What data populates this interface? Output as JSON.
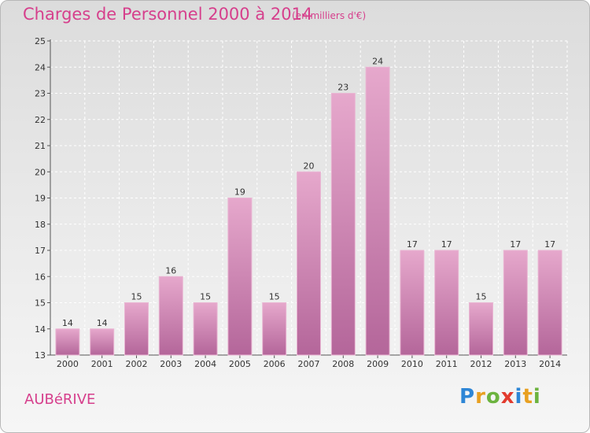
{
  "header": {
    "title": "Charges de Personnel 2000 à 2014",
    "subtitle": "(en milliers d'€)"
  },
  "footer": {
    "commune": "AUBéRIVE",
    "logo_letters": [
      "P",
      "r",
      "o",
      "x",
      "i",
      "t",
      "i"
    ]
  },
  "chart_data": {
    "type": "bar",
    "categories": [
      "2000",
      "2001",
      "2002",
      "2003",
      "2004",
      "2005",
      "2006",
      "2007",
      "2008",
      "2009",
      "2010",
      "2011",
      "2012",
      "2013",
      "2014"
    ],
    "values": [
      14,
      14,
      15,
      16,
      15,
      19,
      15,
      20,
      23,
      24,
      17,
      17,
      15,
      17,
      17
    ],
    "title": "Charges de Personnel 2000 à 2014",
    "ylim": [
      13,
      25
    ],
    "yticks": [
      13,
      14,
      15,
      16,
      17,
      18,
      19,
      20,
      21,
      22,
      23,
      24,
      25
    ],
    "grid": true,
    "bar_color": "#d98dba"
  }
}
